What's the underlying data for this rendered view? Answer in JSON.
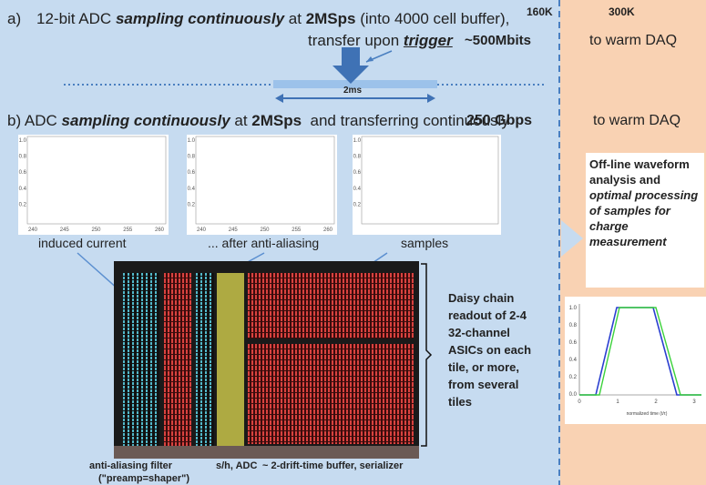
{
  "header": {
    "left_temp": "160K",
    "right_temp": "300K"
  },
  "section_a": {
    "label": "a)",
    "line1": [
      "12-bit ADC ",
      "sampling continuously",
      " at ",
      "2MSps",
      " (into 4000 cell buffer),"
    ],
    "line2": [
      "transfer upon ",
      "trigger"
    ],
    "data_size": "~500Mbits",
    "window": "2ms",
    "destination": "to warm DAQ"
  },
  "section_b": {
    "line": [
      "b) ADC ",
      "sampling continuously",
      " at ",
      "2MSps",
      "  and transferring continuously"
    ],
    "rate": "250 Gbps",
    "destination": "to warm DAQ"
  },
  "plots": [
    {
      "caption": "induced current",
      "yticks": [
        "1.0",
        "0.8",
        "0.6",
        "0.4",
        "0.2"
      ],
      "xticks": [
        "240",
        "245",
        "250",
        "255",
        "260"
      ]
    },
    {
      "caption": "... after anti-aliasing",
      "yticks": [
        "1.0",
        "0.8",
        "0.6",
        "0.4",
        "0.2"
      ],
      "xticks": [
        "240",
        "245",
        "250",
        "255",
        "260"
      ]
    },
    {
      "caption": "samples",
      "yticks": [
        "1.0",
        "0.8",
        "0.6",
        "0.4",
        "0.2"
      ]
    }
  ],
  "chip": {
    "filter_label": "anti-aliasing filter",
    "filter_sublabel": "(\"preamp=shaper\")",
    "adc_label": "s/h, ADC",
    "buffer_label": "~ 2-drift-time buffer, serializer"
  },
  "readout": {
    "lines": [
      "Daisy chain",
      "readout of 2-4",
      "32-channel",
      "ASICs on each",
      "tile, or more,",
      "from several",
      "tiles"
    ]
  },
  "offline": {
    "plain": "Off-line waveform analysis and ",
    "emphasis": "optimal processing of samples for charge measurement"
  },
  "result_plot": {
    "yticks": [
      "1.0",
      "0.8",
      "0.6",
      "0.4",
      "0.2",
      "0.0"
    ],
    "xticks": [
      "0",
      "1",
      "2",
      "3"
    ],
    "xlabel": "normalized time (t/τ)"
  }
}
